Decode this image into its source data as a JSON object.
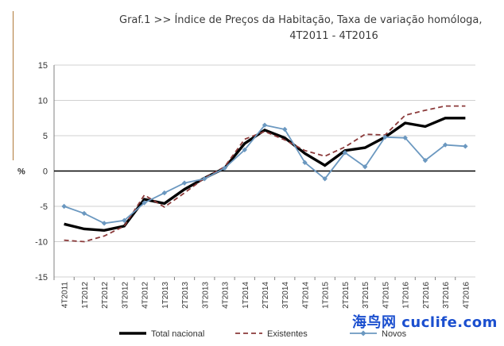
{
  "chart_data": {
    "type": "line",
    "title": "Graf.1  >>  Índice de Preços da Habitação, Taxa de variação homóloga,",
    "subtitle": "4T2011 - 4T2016",
    "ylabel": "%",
    "ylim": [
      -15,
      15
    ],
    "yticks": [
      -15,
      -10,
      -5,
      0,
      5,
      10,
      15
    ],
    "grid": true,
    "legend_position": "bottom",
    "categories": [
      "4T2011",
      "1T2012",
      "2T2012",
      "3T2012",
      "4T2012",
      "1T2013",
      "2T2013",
      "3T2013",
      "4T2013",
      "1T2014",
      "2T2014",
      "3T2014",
      "4T2014",
      "1T2015",
      "2T2015",
      "3T2015",
      "4T2015",
      "1T2016",
      "2T2016",
      "3T2016",
      "4T2016"
    ],
    "series": [
      {
        "name": "Total nacional",
        "color": "#000000",
        "style": "solid",
        "values": [
          -7.5,
          -8.2,
          -8.4,
          -7.8,
          -4.0,
          -4.6,
          -2.6,
          -1.0,
          0.4,
          3.9,
          5.8,
          4.7,
          2.5,
          0.8,
          2.9,
          3.3,
          4.8,
          6.8,
          6.3,
          7.5,
          7.5
        ]
      },
      {
        "name": "Existentes",
        "color": "#8b3a3a",
        "style": "dashed",
        "values": [
          -9.8,
          -10.0,
          -9.2,
          -7.8,
          -3.4,
          -5.1,
          -3.1,
          -1.0,
          0.6,
          4.5,
          5.6,
          4.4,
          2.9,
          2.1,
          3.4,
          5.2,
          5.1,
          7.9,
          8.6,
          9.2,
          9.2
        ]
      },
      {
        "name": "Novos",
        "color": "#6b98c0",
        "style": "solid-marker",
        "values": [
          -5.0,
          -6.0,
          -7.4,
          -7.0,
          -4.5,
          -3.1,
          -1.7,
          -1.1,
          0.4,
          3.0,
          6.5,
          5.9,
          1.2,
          -1.1,
          2.6,
          0.6,
          4.8,
          4.7,
          1.5,
          3.7,
          3.5
        ]
      }
    ]
  },
  "watermark": "海鸟网 cuclife.com"
}
